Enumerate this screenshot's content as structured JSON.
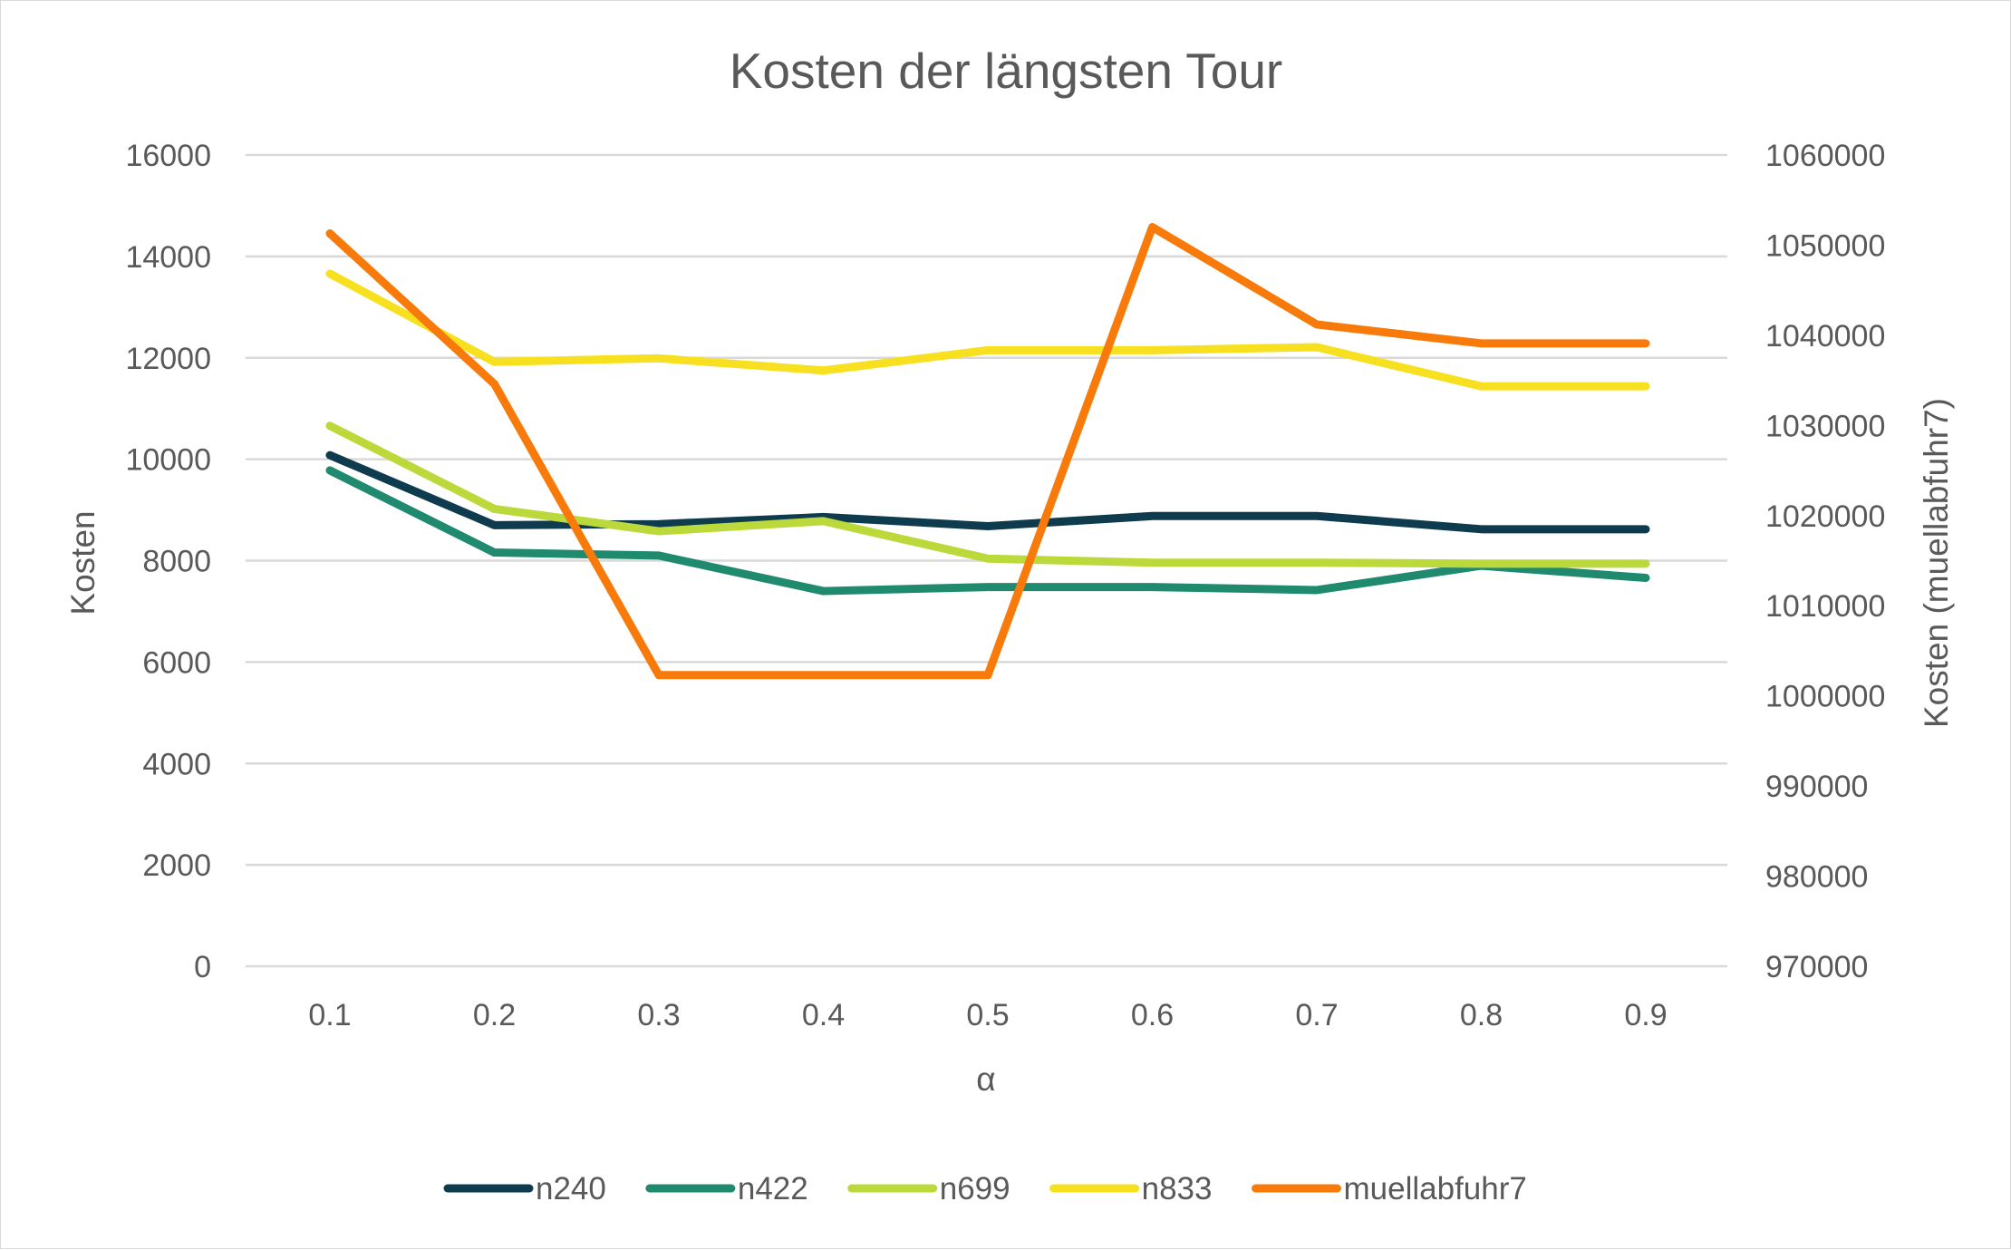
{
  "chart_data": {
    "type": "line",
    "title": "Kosten der längsten Tour",
    "xlabel": "α",
    "ylabel": "Kosten",
    "y2label": "Kosten (muellabfuhr7)",
    "categories": [
      "0.1",
      "0.2",
      "0.3",
      "0.4",
      "0.5",
      "0.6",
      "0.7",
      "0.8",
      "0.9"
    ],
    "ylim": [
      0,
      16000
    ],
    "yticks": [
      "0",
      "2000",
      "4000",
      "6000",
      "8000",
      "10000",
      "12000",
      "14000",
      "16000"
    ],
    "y2lim": [
      970000,
      1060000
    ],
    "y2ticks": [
      "970000",
      "980000",
      "990000",
      "1000000",
      "1010000",
      "1020000",
      "1030000",
      "1040000",
      "1050000",
      "1060000"
    ],
    "grid": true,
    "legend_position": "bottom",
    "series": [
      {
        "name": "n240",
        "axis": "left",
        "color": "#0e3b4e",
        "values": [
          10080,
          8700,
          8720,
          8860,
          8680,
          8880,
          8880,
          8620,
          8620
        ]
      },
      {
        "name": "n422",
        "axis": "left",
        "color": "#1f8a6e",
        "values": [
          9780,
          8160,
          8100,
          7400,
          7480,
          7480,
          7420,
          7900,
          7660
        ]
      },
      {
        "name": "n699",
        "axis": "left",
        "color": "#bcd93c",
        "values": [
          10660,
          9020,
          8580,
          8780,
          8040,
          7960,
          7960,
          7940,
          7940
        ]
      },
      {
        "name": "n833",
        "axis": "left",
        "color": "#f7e01f",
        "values": [
          13660,
          11920,
          11990,
          11750,
          12150,
          12150,
          12210,
          11440,
          11440
        ]
      },
      {
        "name": "muellabfuhr7",
        "axis": "right",
        "color": "#f77a0a",
        "values": [
          1051300,
          1034600,
          1002300,
          1002300,
          1002300,
          1052000,
          1041200,
          1039100,
          1039100
        ]
      }
    ]
  }
}
